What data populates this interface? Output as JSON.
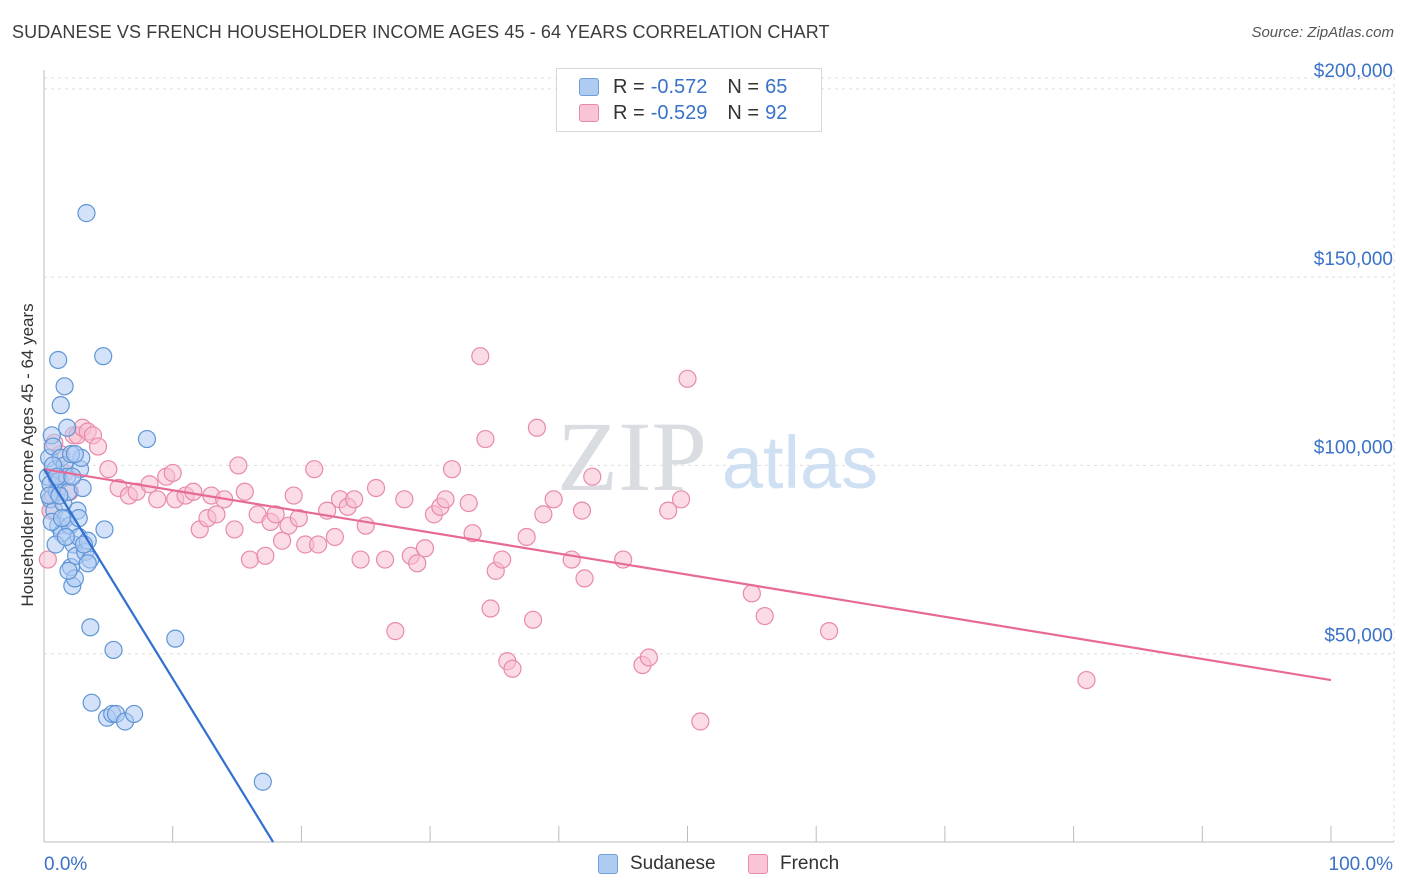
{
  "title": "SUDANESE VS FRENCH HOUSEHOLDER INCOME AGES 45 - 64 YEARS CORRELATION CHART",
  "source": "Source: ZipAtlas.com",
  "watermark": {
    "zip": "ZIP",
    "atlas": "atlas"
  },
  "legend": {
    "rows": [
      {
        "r_label": "R = ",
        "r_value": "-0.572",
        "n_label": "N = ",
        "n_value": "65",
        "color": "#aecbf2",
        "border": "#6f9ed8"
      },
      {
        "r_label": "R = ",
        "r_value": "-0.529",
        "n_label": "N = ",
        "n_value": "92",
        "color": "#f9c4d6",
        "border": "#e88aab"
      }
    ]
  },
  "bottom_legend": {
    "sudanese": "Sudanese",
    "french": "French"
  },
  "colors": {
    "sudanese_fill": "#aecbf2",
    "sudanese_stroke": "#5f95d6",
    "sudanese_line": "#2f6fd0",
    "french_fill": "#f7bdd0",
    "french_stroke": "#e88aab",
    "french_line": "#e66a95",
    "tick_label": "#3a72c8",
    "grid": "#dddddd"
  },
  "chart_data": {
    "type": "scatter",
    "title": "SUDANESE VS FRENCH HOUSEHOLDER INCOME AGES 45 - 64 YEARS CORRELATION CHART",
    "xlabel": "",
    "ylabel": "Householder Income Ages 45 - 64 years",
    "xlim": [
      0,
      100
    ],
    "ylim": [
      0,
      205000
    ],
    "x_tick_labels": {
      "left": "0.0%",
      "right": "100.0%"
    },
    "y_ticks": [
      50000,
      100000,
      150000,
      200000
    ],
    "y_tick_labels": [
      "$50,000",
      "$100,000",
      "$150,000",
      "$200,000"
    ],
    "grid": true,
    "legend_position": "top-center",
    "series": [
      {
        "name": "Sudanese",
        "r": -0.572,
        "n": 65,
        "trend": {
          "x": [
            0.0,
            17.8
          ],
          "y": [
            99000,
            0
          ]
        },
        "points": [
          [
            0.3,
            97000
          ],
          [
            0.4,
            102000
          ],
          [
            0.5,
            95000
          ],
          [
            0.6,
            108000
          ],
          [
            0.7,
            105000
          ],
          [
            0.5,
            91000
          ],
          [
            0.8,
            88000
          ],
          [
            0.9,
            99000
          ],
          [
            1.0,
            93000
          ],
          [
            1.1,
            84000
          ],
          [
            1.2,
            96000
          ],
          [
            1.3,
            102000
          ],
          [
            1.4,
            82000
          ],
          [
            1.5,
            90000
          ],
          [
            1.6,
            100000
          ],
          [
            1.7,
            86000
          ],
          [
            1.8,
            97000
          ],
          [
            1.9,
            93000
          ],
          [
            2.0,
            84000
          ],
          [
            2.1,
            73000
          ],
          [
            2.2,
            68000
          ],
          [
            2.3,
            79000
          ],
          [
            2.4,
            70000
          ],
          [
            2.5,
            76000
          ],
          [
            2.6,
            88000
          ],
          [
            2.7,
            81000
          ],
          [
            2.8,
            99000
          ],
          [
            2.9,
            102000
          ],
          [
            3.0,
            94000
          ],
          [
            3.2,
            77000
          ],
          [
            3.4,
            80000
          ],
          [
            3.6,
            75000
          ],
          [
            0.9,
            79000
          ],
          [
            1.1,
            128000
          ],
          [
            1.3,
            116000
          ],
          [
            1.6,
            121000
          ],
          [
            1.8,
            110000
          ],
          [
            2.1,
            103000
          ],
          [
            2.4,
            103000
          ],
          [
            3.3,
            167000
          ],
          [
            3.6,
            57000
          ],
          [
            4.6,
            129000
          ],
          [
            4.7,
            83000
          ],
          [
            3.7,
            37000
          ],
          [
            5.4,
            51000
          ],
          [
            4.9,
            33000
          ],
          [
            5.3,
            34000
          ],
          [
            5.6,
            34000
          ],
          [
            6.3,
            32000
          ],
          [
            7.0,
            34000
          ],
          [
            8.0,
            107000
          ],
          [
            10.2,
            54000
          ],
          [
            17.0,
            16000
          ],
          [
            0.4,
            92000
          ],
          [
            0.6,
            85000
          ],
          [
            0.7,
            100000
          ],
          [
            1.0,
            97000
          ],
          [
            1.2,
            92000
          ],
          [
            1.4,
            86000
          ],
          [
            1.7,
            81000
          ],
          [
            1.9,
            72000
          ],
          [
            2.2,
            97000
          ],
          [
            2.7,
            86000
          ],
          [
            3.1,
            79000
          ],
          [
            3.4,
            74000
          ]
        ]
      },
      {
        "name": "French",
        "r": -0.529,
        "n": 92,
        "trend": {
          "x": [
            0.0,
            100.0
          ],
          "y": [
            99000,
            43000
          ]
        },
        "points": [
          [
            0.3,
            75000
          ],
          [
            0.5,
            88000
          ],
          [
            0.7,
            92000
          ],
          [
            1.0,
            96000
          ],
          [
            1.3,
            103000
          ],
          [
            1.6,
            98000
          ],
          [
            2.0,
            93000
          ],
          [
            2.3,
            108000
          ],
          [
            2.6,
            108000
          ],
          [
            3.0,
            110000
          ],
          [
            3.4,
            109000
          ],
          [
            3.8,
            108000
          ],
          [
            4.2,
            105000
          ],
          [
            5.0,
            99000
          ],
          [
            5.8,
            94000
          ],
          [
            6.6,
            92000
          ],
          [
            7.2,
            93000
          ],
          [
            8.2,
            95000
          ],
          [
            8.8,
            91000
          ],
          [
            9.5,
            97000
          ],
          [
            10.0,
            98000
          ],
          [
            10.2,
            91000
          ],
          [
            11.0,
            92000
          ],
          [
            11.6,
            93000
          ],
          [
            12.1,
            83000
          ],
          [
            12.7,
            86000
          ],
          [
            13.0,
            92000
          ],
          [
            13.4,
            87000
          ],
          [
            14.0,
            91000
          ],
          [
            14.8,
            83000
          ],
          [
            15.1,
            100000
          ],
          [
            15.6,
            93000
          ],
          [
            16.0,
            75000
          ],
          [
            16.6,
            87000
          ],
          [
            17.2,
            76000
          ],
          [
            17.6,
            85000
          ],
          [
            18.0,
            87000
          ],
          [
            18.5,
            80000
          ],
          [
            19.0,
            84000
          ],
          [
            19.4,
            92000
          ],
          [
            19.8,
            86000
          ],
          [
            20.3,
            79000
          ],
          [
            21.0,
            99000
          ],
          [
            21.3,
            79000
          ],
          [
            22.0,
            88000
          ],
          [
            22.6,
            81000
          ],
          [
            23.0,
            91000
          ],
          [
            23.6,
            89000
          ],
          [
            24.1,
            91000
          ],
          [
            24.6,
            75000
          ],
          [
            25.0,
            84000
          ],
          [
            25.8,
            94000
          ],
          [
            26.5,
            75000
          ],
          [
            27.3,
            56000
          ],
          [
            28.0,
            91000
          ],
          [
            28.5,
            76000
          ],
          [
            29.0,
            74000
          ],
          [
            29.6,
            78000
          ],
          [
            30.3,
            87000
          ],
          [
            30.8,
            89000
          ],
          [
            31.2,
            91000
          ],
          [
            31.7,
            99000
          ],
          [
            33.0,
            90000
          ],
          [
            33.3,
            82000
          ],
          [
            33.9,
            129000
          ],
          [
            34.3,
            107000
          ],
          [
            34.7,
            62000
          ],
          [
            35.1,
            72000
          ],
          [
            35.6,
            75000
          ],
          [
            36.0,
            48000
          ],
          [
            36.4,
            46000
          ],
          [
            37.5,
            81000
          ],
          [
            38.0,
            59000
          ],
          [
            38.3,
            110000
          ],
          [
            38.8,
            87000
          ],
          [
            39.6,
            91000
          ],
          [
            41.0,
            75000
          ],
          [
            41.8,
            88000
          ],
          [
            42.0,
            70000
          ],
          [
            42.6,
            97000
          ],
          [
            45.0,
            75000
          ],
          [
            46.5,
            47000
          ],
          [
            47.0,
            49000
          ],
          [
            48.5,
            88000
          ],
          [
            49.5,
            91000
          ],
          [
            50.0,
            123000
          ],
          [
            51.0,
            32000
          ],
          [
            55.0,
            66000
          ],
          [
            56.0,
            60000
          ],
          [
            61.0,
            56000
          ],
          [
            81.0,
            43000
          ],
          [
            0.8,
            106000
          ]
        ]
      }
    ]
  }
}
